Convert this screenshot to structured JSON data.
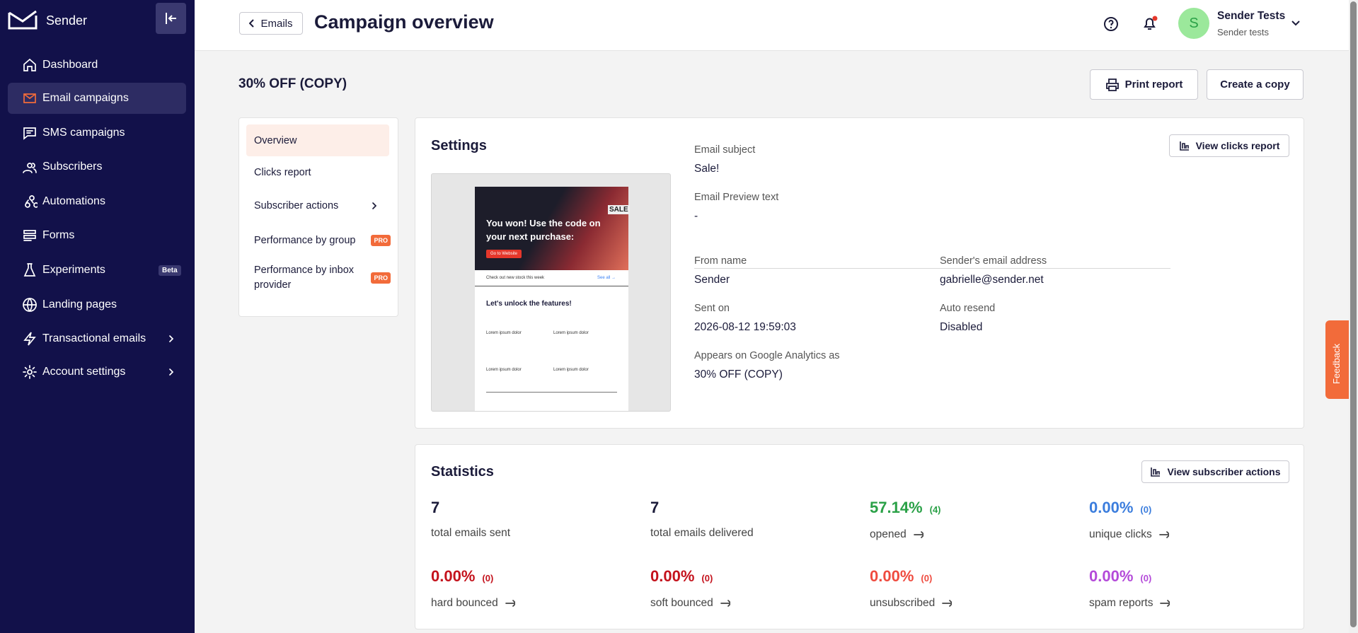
{
  "sidebar": {
    "brand": "Sender",
    "nav": [
      {
        "label": "Dashboard"
      },
      {
        "label": "Email campaigns"
      },
      {
        "label": "SMS campaigns"
      },
      {
        "label": "Subscribers"
      },
      {
        "label": "Automations"
      },
      {
        "label": "Forms"
      },
      {
        "label": "Experiments",
        "badge": "Beta"
      },
      {
        "label": "Landing pages"
      },
      {
        "label": "Transactional emails"
      },
      {
        "label": "Account settings"
      }
    ]
  },
  "header": {
    "back": "Emails",
    "title": "Campaign overview",
    "avatar": "S",
    "user_name": "Sender Tests",
    "user_sub": "Sender tests"
  },
  "campaign": {
    "name": "30% OFF (COPY)",
    "print_button": "Print report",
    "copy_button": "Create a copy"
  },
  "menu": {
    "items": [
      "Overview",
      "Clicks report",
      "Subscriber actions",
      "Performance by group",
      "Performance by inbox provider"
    ],
    "pro": "PRO"
  },
  "settings": {
    "title": "Settings",
    "button": "View clicks report",
    "fields": [
      {
        "label": "Email subject",
        "value": "Sale!"
      },
      {
        "label": "Email Preview text",
        "value": "-"
      },
      {
        "label": "From name",
        "value": "Sender"
      },
      {
        "label": "Sender's email address",
        "value": "gabrielle@sender.net"
      },
      {
        "label": "Sent on",
        "value": "2026-08-12 19:59:03"
      },
      {
        "label": "Auto resend",
        "value": "Disabled"
      },
      {
        "label": "Appears on Google Analytics as",
        "value": "30% OFF (COPY)"
      }
    ]
  },
  "preview": {
    "hero": "You won! Use the code on your next purchase:",
    "sale": "SALE",
    "cta": "Go to Website",
    "stock": "Check out new stock this week",
    "see_all": "See all →",
    "features": "Let's unlock the features!",
    "item": "Lorem ipsum dolor"
  },
  "statistics": {
    "title": "Statistics",
    "button": "View subscriber actions",
    "items": [
      {
        "value": "7",
        "label": "total emails sent"
      },
      {
        "value": "7",
        "label": "total emails delivered"
      },
      {
        "value": "57.14%",
        "count": "(4)",
        "label": "opened"
      },
      {
        "value": "0.00%",
        "count": "(0)",
        "label": "unique clicks"
      },
      {
        "value": "0.00%",
        "count": "(0)",
        "label": "hard bounced"
      },
      {
        "value": "0.00%",
        "count": "(0)",
        "label": "soft bounced"
      },
      {
        "value": "0.00%",
        "count": "(0)",
        "label": "unsubscribed"
      },
      {
        "value": "0.00%",
        "count": "(0)",
        "label": "spam reports"
      }
    ]
  },
  "feedback": "Feedback"
}
